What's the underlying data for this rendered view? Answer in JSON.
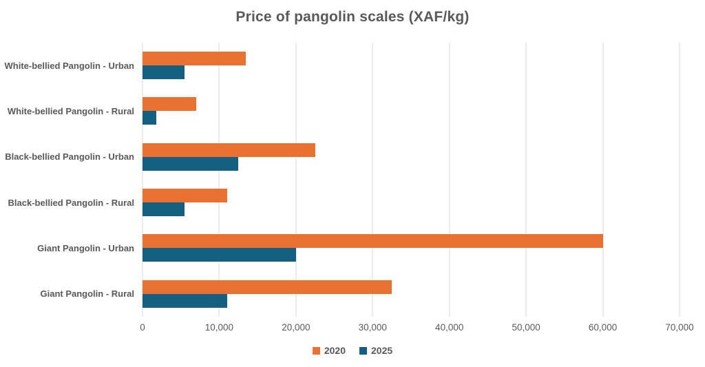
{
  "chart_data": {
    "type": "bar",
    "orientation": "horizontal",
    "title": "Price of pangolin scales (XAF/kg)",
    "categories": [
      "White-bellied Pangolin - Urban",
      "White-bellied Pangolin - Rural",
      "Black-bellied Pangolin - Urban",
      "Black-bellied Pangolin - Rural",
      "Giant Pangolin - Urban",
      "Giant Pangolin - Rural"
    ],
    "series": [
      {
        "name": "2020",
        "color": "#E97132",
        "values": [
          13500,
          7000,
          22500,
          11000,
          60000,
          32500
        ]
      },
      {
        "name": "2025",
        "color": "#156082",
        "values": [
          5500,
          1750,
          12500,
          5500,
          20000,
          11000
        ]
      }
    ],
    "xlim": [
      0,
      70000
    ],
    "x_ticks": [
      0,
      10000,
      20000,
      30000,
      40000,
      50000,
      60000,
      70000
    ],
    "x_tick_labels": [
      "0",
      "10,000",
      "20,000",
      "30,000",
      "40,000",
      "50,000",
      "60,000",
      "70,000"
    ],
    "grid": true,
    "legend_position": "bottom",
    "colors": {
      "title": "#595959",
      "category_labels": "#595959",
      "tick_labels": "#595959",
      "legend_labels": "#595959",
      "gridline": "#D9D9D9",
      "background": "#FFFFFF"
    }
  }
}
